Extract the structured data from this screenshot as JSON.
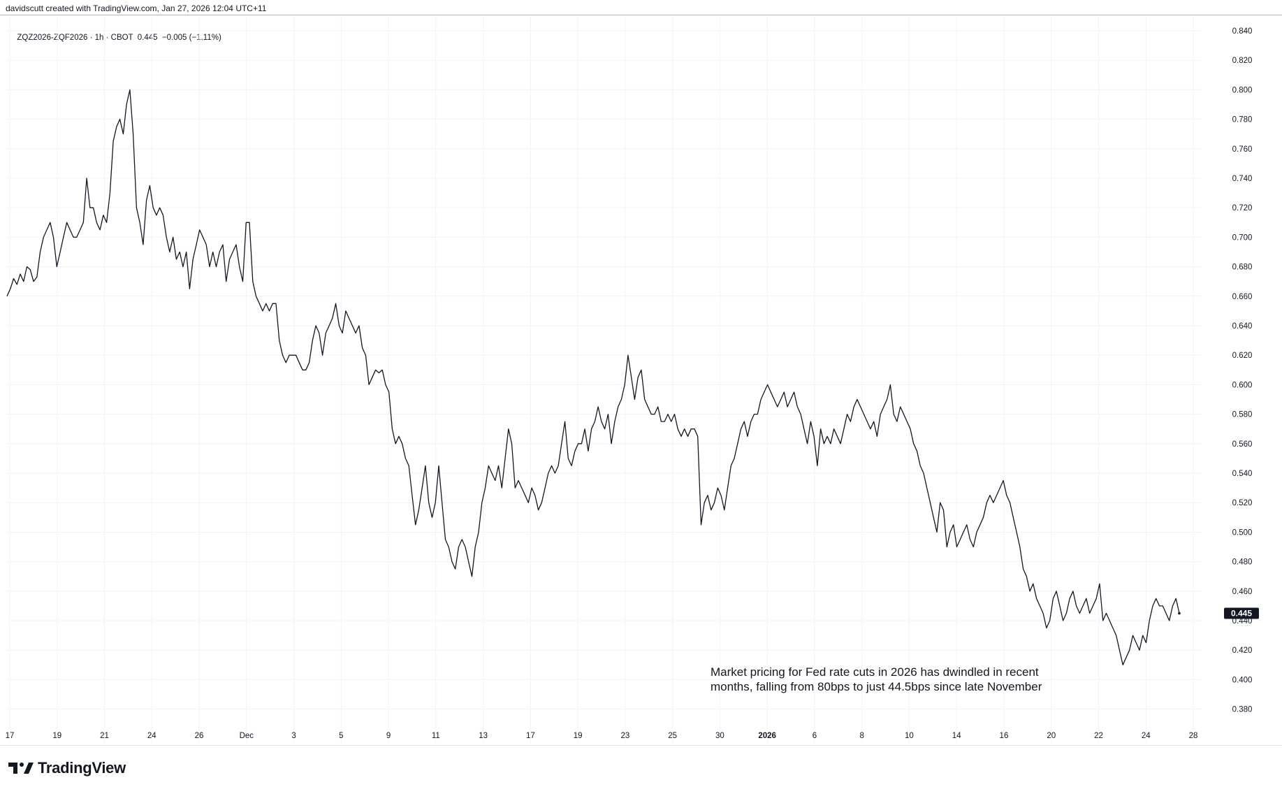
{
  "header": {
    "credit": "davidscutt created with TradingView.com, Jan 27, 2026 12:04 UTC+11"
  },
  "symbol": {
    "name": "ZQZ2026-ZQF2026",
    "interval": "1h",
    "exchange": "CBOT",
    "last": "0.445",
    "change": "−0.005",
    "change_pct": "(−1.11%)"
  },
  "footer": {
    "brand": "TradingView",
    "icon": "tradingview-logo-icon"
  },
  "chart_data": {
    "type": "line",
    "title": "",
    "xlabel": "",
    "ylabel": "",
    "ylim": [
      0.37,
      0.85
    ],
    "y_ticks": [
      "0.840",
      "0.820",
      "0.800",
      "0.780",
      "0.760",
      "0.740",
      "0.720",
      "0.700",
      "0.680",
      "0.660",
      "0.640",
      "0.620",
      "0.600",
      "0.580",
      "0.560",
      "0.540",
      "0.520",
      "0.500",
      "0.480",
      "0.460",
      "0.440",
      "0.420",
      "0.400",
      "0.380"
    ],
    "x_ticks": [
      {
        "label": "17",
        "bold": false
      },
      {
        "label": "19",
        "bold": false
      },
      {
        "label": "21",
        "bold": false
      },
      {
        "label": "24",
        "bold": false
      },
      {
        "label": "26",
        "bold": false
      },
      {
        "label": "Dec",
        "bold": false
      },
      {
        "label": "3",
        "bold": false
      },
      {
        "label": "5",
        "bold": false
      },
      {
        "label": "9",
        "bold": false
      },
      {
        "label": "11",
        "bold": false
      },
      {
        "label": "13",
        "bold": false
      },
      {
        "label": "17",
        "bold": false
      },
      {
        "label": "19",
        "bold": false
      },
      {
        "label": "23",
        "bold": false
      },
      {
        "label": "25",
        "bold": false
      },
      {
        "label": "30",
        "bold": false
      },
      {
        "label": "2026",
        "bold": true
      },
      {
        "label": "6",
        "bold": false
      },
      {
        "label": "8",
        "bold": false
      },
      {
        "label": "10",
        "bold": false
      },
      {
        "label": "14",
        "bold": false
      },
      {
        "label": "16",
        "bold": false
      },
      {
        "label": "20",
        "bold": false
      },
      {
        "label": "22",
        "bold": false
      },
      {
        "label": "24",
        "bold": false
      },
      {
        "label": "28",
        "bold": false
      }
    ],
    "last_price_label": "0.445",
    "line_color": "#131722",
    "badge_color": "#131722",
    "grid": true,
    "annotation": [
      "Market pricing for Fed rate cuts in 2026 has dwindled in recent",
      "months, falling from 80bps to just 44.5bps since late November"
    ],
    "series": [
      {
        "values": [
          0.66,
          0.665,
          0.672,
          0.668,
          0.675,
          0.67,
          0.68,
          0.678,
          0.67,
          0.673,
          0.69,
          0.7,
          0.705,
          0.71,
          0.7,
          0.68,
          0.69,
          0.7,
          0.71,
          0.705,
          0.7,
          0.7,
          0.705,
          0.71,
          0.74,
          0.72,
          0.72,
          0.71,
          0.705,
          0.715,
          0.71,
          0.73,
          0.765,
          0.775,
          0.78,
          0.77,
          0.79,
          0.8,
          0.77,
          0.72,
          0.71,
          0.695,
          0.725,
          0.735,
          0.72,
          0.715,
          0.72,
          0.715,
          0.7,
          0.69,
          0.7,
          0.685,
          0.69,
          0.68,
          0.69,
          0.665,
          0.685,
          0.695,
          0.705,
          0.7,
          0.695,
          0.68,
          0.69,
          0.68,
          0.69,
          0.695,
          0.67,
          0.685,
          0.69,
          0.695,
          0.68,
          0.67,
          0.71,
          0.71,
          0.67,
          0.66,
          0.655,
          0.65,
          0.655,
          0.65,
          0.655,
          0.655,
          0.63,
          0.62,
          0.615,
          0.62,
          0.62,
          0.62,
          0.615,
          0.61,
          0.61,
          0.615,
          0.63,
          0.64,
          0.635,
          0.62,
          0.635,
          0.64,
          0.645,
          0.655,
          0.64,
          0.635,
          0.65,
          0.645,
          0.64,
          0.635,
          0.64,
          0.625,
          0.62,
          0.6,
          0.605,
          0.61,
          0.608,
          0.61,
          0.6,
          0.595,
          0.57,
          0.56,
          0.565,
          0.56,
          0.55,
          0.545,
          0.525,
          0.505,
          0.515,
          0.53,
          0.545,
          0.52,
          0.51,
          0.52,
          0.545,
          0.52,
          0.495,
          0.49,
          0.48,
          0.475,
          0.49,
          0.495,
          0.49,
          0.48,
          0.47,
          0.49,
          0.5,
          0.52,
          0.53,
          0.545,
          0.54,
          0.535,
          0.545,
          0.53,
          0.55,
          0.57,
          0.56,
          0.53,
          0.535,
          0.53,
          0.525,
          0.52,
          0.53,
          0.525,
          0.515,
          0.52,
          0.53,
          0.54,
          0.545,
          0.54,
          0.545,
          0.56,
          0.575,
          0.55,
          0.545,
          0.555,
          0.56,
          0.56,
          0.57,
          0.555,
          0.57,
          0.575,
          0.585,
          0.575,
          0.57,
          0.58,
          0.56,
          0.575,
          0.585,
          0.59,
          0.6,
          0.62,
          0.605,
          0.59,
          0.605,
          0.61,
          0.59,
          0.585,
          0.58,
          0.58,
          0.585,
          0.575,
          0.575,
          0.58,
          0.575,
          0.58,
          0.57,
          0.565,
          0.57,
          0.565,
          0.57,
          0.57,
          0.565,
          0.505,
          0.52,
          0.525,
          0.515,
          0.52,
          0.53,
          0.525,
          0.515,
          0.53,
          0.545,
          0.55,
          0.56,
          0.57,
          0.575,
          0.565,
          0.575,
          0.58,
          0.58,
          0.59,
          0.595,
          0.6,
          0.595,
          0.59,
          0.585,
          0.59,
          0.595,
          0.585,
          0.59,
          0.595,
          0.585,
          0.58,
          0.57,
          0.56,
          0.575,
          0.565,
          0.545,
          0.57,
          0.56,
          0.565,
          0.56,
          0.57,
          0.565,
          0.56,
          0.57,
          0.58,
          0.575,
          0.585,
          0.59,
          0.585,
          0.58,
          0.575,
          0.57,
          0.575,
          0.565,
          0.58,
          0.585,
          0.59,
          0.6,
          0.58,
          0.575,
          0.585,
          0.58,
          0.575,
          0.57,
          0.56,
          0.555,
          0.545,
          0.54,
          0.53,
          0.52,
          0.51,
          0.5,
          0.52,
          0.515,
          0.49,
          0.5,
          0.505,
          0.49,
          0.495,
          0.5,
          0.505,
          0.495,
          0.49,
          0.5,
          0.505,
          0.51,
          0.52,
          0.525,
          0.52,
          0.525,
          0.53,
          0.535,
          0.525,
          0.52,
          0.51,
          0.5,
          0.49,
          0.475,
          0.47,
          0.46,
          0.465,
          0.455,
          0.45,
          0.445,
          0.435,
          0.44,
          0.455,
          0.46,
          0.45,
          0.44,
          0.445,
          0.455,
          0.46,
          0.45,
          0.445,
          0.45,
          0.455,
          0.445,
          0.45,
          0.455,
          0.465,
          0.44,
          0.445,
          0.44,
          0.435,
          0.43,
          0.42,
          0.41,
          0.415,
          0.42,
          0.43,
          0.425,
          0.42,
          0.43,
          0.425,
          0.44,
          0.45,
          0.455,
          0.45,
          0.45,
          0.445,
          0.44,
          0.45,
          0.455,
          0.445
        ]
      }
    ]
  }
}
